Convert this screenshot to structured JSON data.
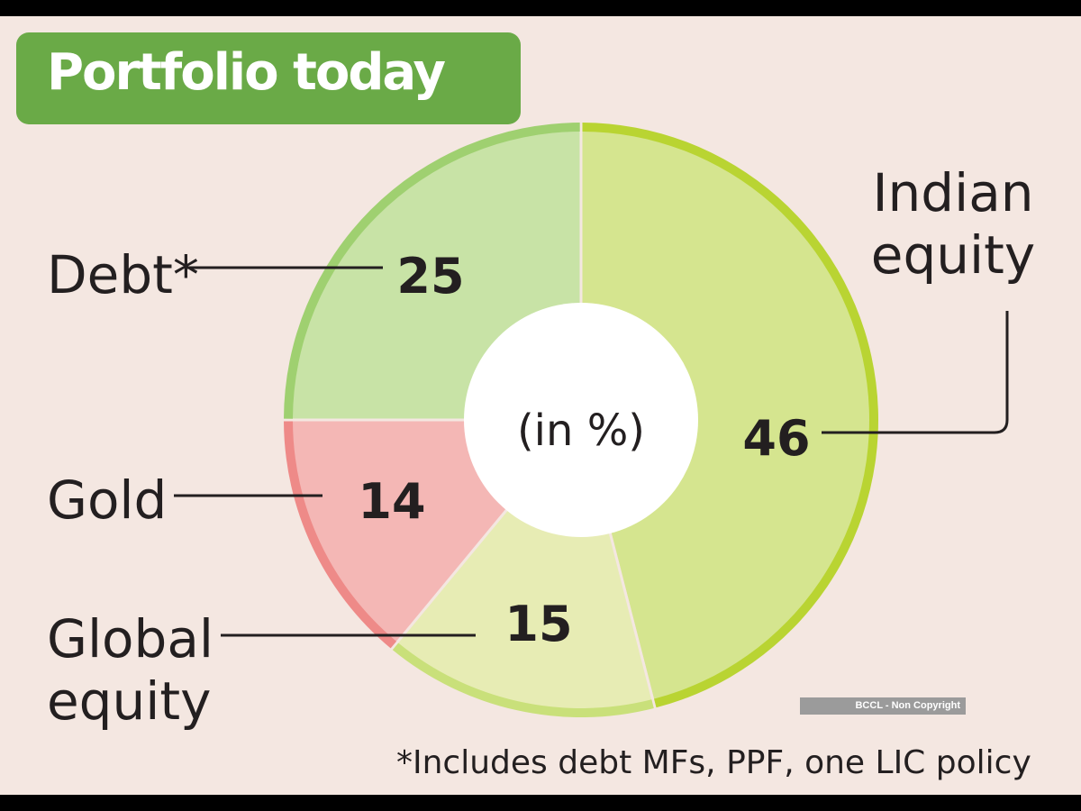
{
  "header": {
    "title": "Portfolio today"
  },
  "chart_data": {
    "type": "pie",
    "variant": "donut",
    "title": "Portfolio today",
    "center_label": "(in %)",
    "categories": [
      "Indian equity",
      "Global equity",
      "Gold",
      "Debt*"
    ],
    "values": [
      46,
      15,
      14,
      25
    ],
    "unit": "%",
    "colors": {
      "Indian equity": "#d5e58f",
      "Global equity": "#e7ecb4",
      "Gold": "#f4b7b5",
      "Debt*": "#c8e3a6"
    },
    "rim_colors": {
      "Indian equity": "#b9d432",
      "Global equity": "#c9e07a",
      "Gold": "#ee8a88",
      "Debt*": "#9fd070"
    }
  },
  "labels": {
    "indian_equity": [
      "Indian",
      "equity"
    ],
    "global_equity": [
      "Global",
      "equity"
    ],
    "gold": "Gold",
    "debt": "Debt*"
  },
  "watermark": "BCCL - Non Copyright",
  "footnote": "*Includes debt MFs, PPF, one LIC policy"
}
